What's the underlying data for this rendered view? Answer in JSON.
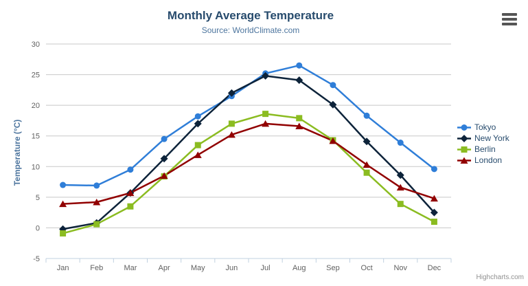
{
  "chart": {
    "title": "Monthly Average Temperature",
    "subtitle": "Source: WorldClimate.com",
    "credits": "Highcharts.com",
    "export_menu_icon": "hamburger-icon",
    "background_color": "#ffffff",
    "title_color": "#274b6d",
    "subtitle_color": "#4d759e",
    "axis_label_color": "#606060",
    "axis_title_color": "#4d759e",
    "gridline_color": "#c8c8c8",
    "axis_line_color": "#c0d0e0",
    "legend_text_color": "#274b6d",
    "credits_color": "#909090"
  },
  "chart_data": {
    "type": "line",
    "title": "Monthly Average Temperature",
    "subtitle": "Source: WorldClimate.com",
    "xlabel": "",
    "ylabel": "Temperature (°C)",
    "ylim": [
      -5,
      30
    ],
    "ytick_step": 5,
    "grid": true,
    "legend_position": "right",
    "categories": [
      "Jan",
      "Feb",
      "Mar",
      "Apr",
      "May",
      "Jun",
      "Jul",
      "Aug",
      "Sep",
      "Oct",
      "Nov",
      "Dec"
    ],
    "series": [
      {
        "name": "Tokyo",
        "color": "#2f7ed8",
        "marker": "circle",
        "values": [
          7.0,
          6.9,
          9.5,
          14.5,
          18.2,
          21.5,
          25.2,
          26.5,
          23.3,
          18.3,
          13.9,
          9.6
        ]
      },
      {
        "name": "New York",
        "color": "#0d233a",
        "marker": "diamond",
        "values": [
          -0.2,
          0.8,
          5.7,
          11.3,
          17.0,
          22.0,
          24.8,
          24.1,
          20.1,
          14.1,
          8.6,
          2.5
        ]
      },
      {
        "name": "Berlin",
        "color": "#8bbc21",
        "marker": "square",
        "values": [
          -0.9,
          0.6,
          3.5,
          8.4,
          13.5,
          17.0,
          18.6,
          17.9,
          14.3,
          9.0,
          3.9,
          1.0
        ]
      },
      {
        "name": "London",
        "color": "#910000",
        "marker": "triangle",
        "values": [
          3.9,
          4.2,
          5.7,
          8.5,
          11.9,
          15.2,
          17.0,
          16.6,
          14.2,
          10.3,
          6.6,
          4.8
        ]
      }
    ]
  }
}
